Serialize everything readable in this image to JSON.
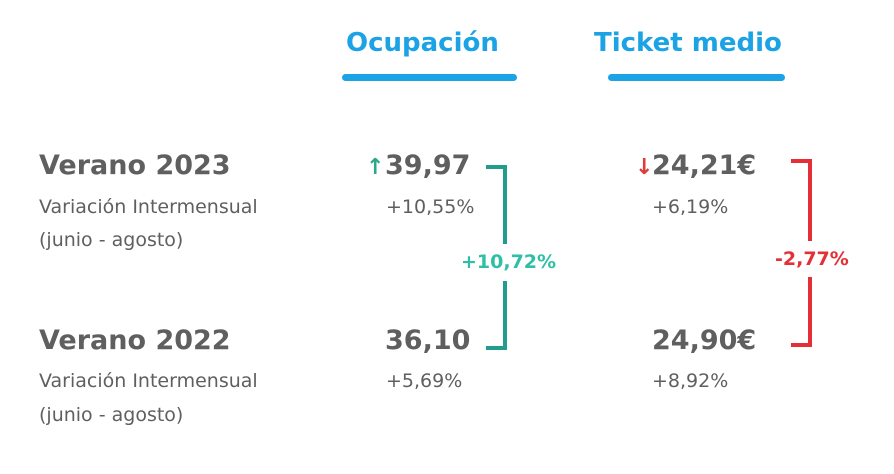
{
  "headers": {
    "occupancy": "Ocupación",
    "ticket": "Ticket medio"
  },
  "rows": [
    {
      "season": "Verano 2023",
      "sub_line1": "Variación Intermensual",
      "sub_line2": "(junio - agosto)",
      "occupancy_value": "39,97",
      "occupancy_pct": "+10,55%",
      "ticket_value": "24,21€",
      "ticket_pct": "+6,19%"
    },
    {
      "season": "Verano 2022",
      "sub_line1": "Variación Intermensual",
      "sub_line2": "(junio - agosto)",
      "occupancy_value": "36,10",
      "occupancy_pct": "+5,69%",
      "ticket_value": "24,90€",
      "ticket_pct": "+8,92%"
    }
  ],
  "arrows": {
    "up": "↑",
    "down": "↓"
  },
  "differences": {
    "occupancy": "+10,72%",
    "ticket": "-2,77%"
  },
  "colors": {
    "header_blue": "#1ba3e6",
    "text_gray": "#5f5f5f",
    "green": "#229c8e",
    "green_text": "#2fbfa6",
    "red": "#e42f36"
  }
}
